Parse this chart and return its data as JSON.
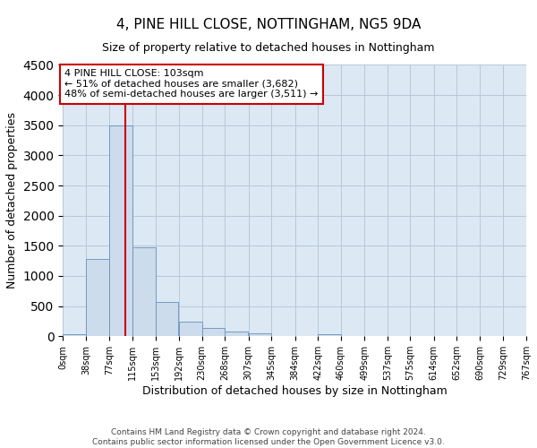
{
  "title1": "4, PINE HILL CLOSE, NOTTINGHAM, NG5 9DA",
  "title2": "Size of property relative to detached houses in Nottingham",
  "xlabel": "Distribution of detached houses by size in Nottingham",
  "ylabel": "Number of detached properties",
  "footer1": "Contains HM Land Registry data © Crown copyright and database right 2024.",
  "footer2": "Contains public sector information licensed under the Open Government Licence v3.0.",
  "annotation_line1": "4 PINE HILL CLOSE: 103sqm",
  "annotation_line2": "← 51% of detached houses are smaller (3,682)",
  "annotation_line3": "48% of semi-detached houses are larger (3,511) →",
  "property_size": 103,
  "bin_width": 38,
  "bin_starts": [
    0,
    38,
    77,
    115,
    153,
    192,
    230,
    268,
    307,
    345,
    384,
    422,
    460,
    499,
    537,
    575,
    614,
    652,
    690,
    729
  ],
  "bar_heights": [
    30,
    1280,
    3500,
    1470,
    570,
    240,
    140,
    75,
    50,
    0,
    0,
    30,
    0,
    0,
    0,
    0,
    0,
    0,
    0,
    0
  ],
  "bar_color": "#ccdcec",
  "bar_edge_color": "#6890b8",
  "vline_color": "#cc0000",
  "annotation_box_edge_color": "#cc0000",
  "grid_color": "#b8c8d8",
  "background_color": "#dce8f4",
  "ylim_max": 4500,
  "yticks": [
    0,
    500,
    1000,
    1500,
    2000,
    2500,
    3000,
    3500,
    4000,
    4500
  ],
  "fig_width": 6.0,
  "fig_height": 5.0,
  "fig_dpi": 100
}
